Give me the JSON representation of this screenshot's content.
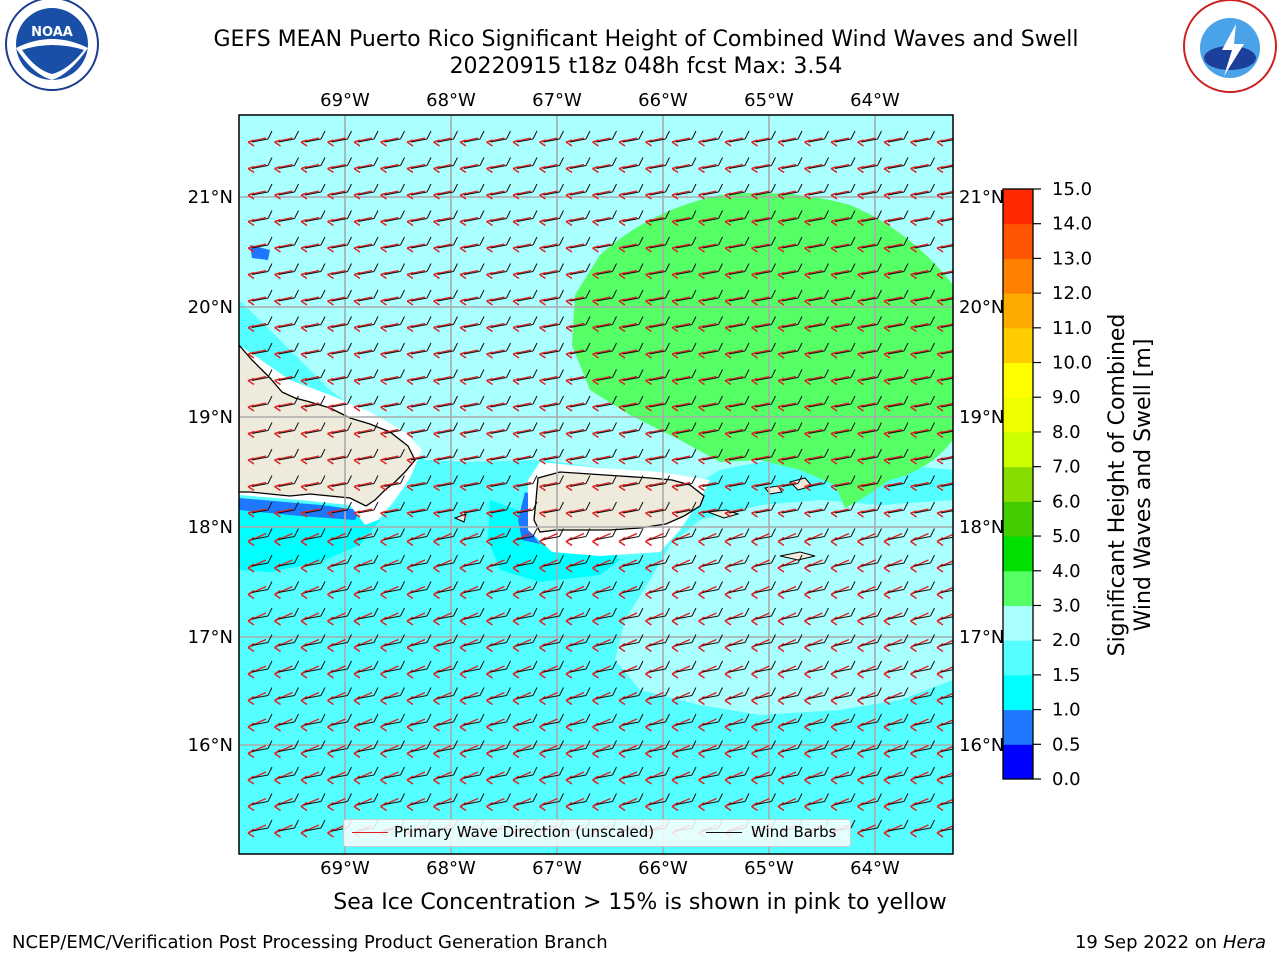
{
  "title_line1": "GEFS MEAN Puerto Rico Significant Height of Combined Wind Waves and Swell",
  "title_line2": "20220915 t18z 048h fcst   Max: 3.54",
  "logos": {
    "left": "noaa-logo",
    "right": "nws-logo"
  },
  "map": {
    "lon_labels": [
      "69°W",
      "68°W",
      "67°W",
      "66°W",
      "65°W",
      "64°W"
    ],
    "lat_labels": [
      "21°N",
      "20°N",
      "19°N",
      "18°N",
      "17°N",
      "16°N"
    ],
    "colors": {
      "land": "#efebdc",
      "ocean_cyan": "#55ffff",
      "light_cyan": "#aaffff",
      "green": "#55ff66",
      "blue": "#1e78ff",
      "dark_blue": "#1040ff",
      "wave_arrow": "#dd2222",
      "barb": "#111111"
    }
  },
  "legend": {
    "wave_label": "Primary Wave Direction (unscaled)",
    "barb_label": "Wind Barbs"
  },
  "colorbar": {
    "label_line1": "Significant Height of Combined",
    "label_line2": "Wind Waves and Swell [m]",
    "ticks": [
      "15.0",
      "14.0",
      "13.0",
      "12.0",
      "11.0",
      "10.0",
      "9.0",
      "8.0",
      "7.0",
      "6.0",
      "5.0",
      "4.0",
      "3.0",
      "2.0",
      "1.5",
      "1.0",
      "0.5",
      "0.0"
    ],
    "colors": [
      "#0000ff",
      "#1e78ff",
      "#00ffff",
      "#55ffff",
      "#aaffff",
      "#55ff66",
      "#00e000",
      "#44cc00",
      "#88dd00",
      "#ccff00",
      "#eeff00",
      "#ffff00",
      "#ffcc00",
      "#ffaa00",
      "#ff8000",
      "#ff5500",
      "#ff2a00",
      "#ff0000"
    ]
  },
  "footer": {
    "sea_ice_note": "Sea Ice Concentration > 15% is shown in pink to yellow",
    "credit": "NCEP/EMC/Verification Post Processing Product Generation Branch",
    "date_prefix": "19 Sep 2022 on",
    "date_host": "Hera"
  }
}
